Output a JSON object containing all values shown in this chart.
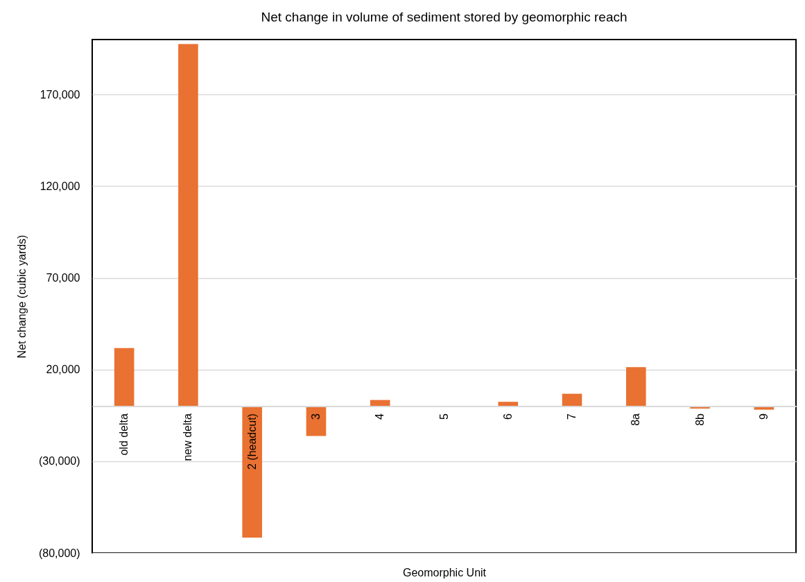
{
  "chart_data": {
    "type": "bar",
    "title": "Net change in volume of sediment stored by geomorphic reach",
    "xlabel": "Geomorphic Unit",
    "ylabel": "Net change (cubic yards)",
    "categories": [
      "old delta",
      "new delta",
      "2 (headcut)",
      "3",
      "4",
      "5",
      "6",
      "7",
      "8a",
      "8b",
      "9"
    ],
    "values": [
      31700,
      197500,
      -71700,
      -16200,
      3400,
      0,
      2400,
      6800,
      21300,
      -1300,
      -1900
    ],
    "color": "#e97132",
    "ylim": [
      -80000,
      200000
    ],
    "yticks": [
      {
        "value": -80000,
        "label": "(80,000)"
      },
      {
        "value": -30000,
        "label": "(30,000)"
      },
      {
        "value": 20000,
        "label": "20,000"
      },
      {
        "value": 70000,
        "label": "70,000"
      },
      {
        "value": 120000,
        "label": "120,000"
      },
      {
        "value": 170000,
        "label": "170,000"
      }
    ],
    "grid": "y"
  }
}
